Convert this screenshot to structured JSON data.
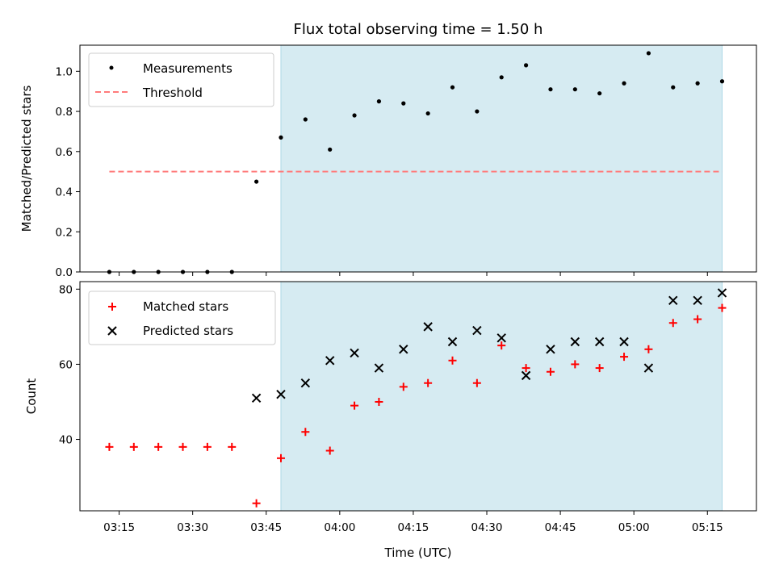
{
  "chart_data": [
    {
      "type": "scatter",
      "title": "Flux total observing time = 1.50 h",
      "ylabel": "Matched/Predicted stars",
      "xlabel": "",
      "ylim": [
        0,
        1.13
      ],
      "yticks": [
        0.0,
        0.2,
        0.4,
        0.6,
        0.8,
        1.0
      ],
      "ytick_labels": [
        "0.0",
        "0.2",
        "0.4",
        "0.6",
        "0.8",
        "1.0"
      ],
      "shaded_region": {
        "x_start": "03:48",
        "x_end": "05:18",
        "color": "#add8e6"
      },
      "legend": {
        "placement": "top-left",
        "entries": [
          "Measurements",
          "Threshold"
        ]
      },
      "series": [
        {
          "name": "Measurements",
          "color": "#000000",
          "marker": "dot",
          "x": [
            "03:13",
            "03:18",
            "03:23",
            "03:28",
            "03:33",
            "03:38",
            "03:43",
            "03:48",
            "03:53",
            "03:58",
            "04:03",
            "04:08",
            "04:13",
            "04:18",
            "04:23",
            "04:28",
            "04:33",
            "04:38",
            "04:43",
            "04:48",
            "04:53",
            "04:58",
            "05:03",
            "05:08",
            "05:13",
            "05:18"
          ],
          "y": [
            0.0,
            0.0,
            0.0,
            0.0,
            0.0,
            0.0,
            0.45,
            0.67,
            0.76,
            0.61,
            0.78,
            0.85,
            0.84,
            0.79,
            0.92,
            0.8,
            0.97,
            1.03,
            0.91,
            0.91,
            0.89,
            0.94,
            1.09,
            0.92,
            0.94,
            0.95
          ]
        },
        {
          "name": "Threshold",
          "color": "#ff7b7b",
          "style": "dashed",
          "x": [
            "03:13",
            "05:18"
          ],
          "y": [
            0.5,
            0.5
          ]
        }
      ]
    },
    {
      "type": "scatter",
      "title": "",
      "xlabel": "Time (UTC)",
      "ylabel": "Count",
      "ylim": [
        21,
        82
      ],
      "yticks": [
        40,
        60,
        80
      ],
      "ytick_labels": [
        "40",
        "60",
        "80"
      ],
      "xlim": [
        "03:07",
        "05:25"
      ],
      "xticks": [
        "03:15",
        "03:30",
        "03:45",
        "04:00",
        "04:15",
        "04:30",
        "04:45",
        "05:00",
        "05:15"
      ],
      "xtick_labels": [
        "03:15",
        "03:30",
        "03:45",
        "04:00",
        "04:15",
        "04:30",
        "04:45",
        "05:00",
        "05:15"
      ],
      "shaded_region": {
        "x_start": "03:48",
        "x_end": "05:18",
        "color": "#add8e6"
      },
      "legend": {
        "placement": "top-left",
        "entries": [
          "Matched stars",
          "Predicted stars"
        ]
      },
      "series": [
        {
          "name": "Matched stars",
          "color": "#ff0000",
          "marker": "plus",
          "x": [
            "03:13",
            "03:18",
            "03:23",
            "03:28",
            "03:33",
            "03:38",
            "03:43",
            "03:48",
            "03:53",
            "03:58",
            "04:03",
            "04:08",
            "04:13",
            "04:18",
            "04:23",
            "04:28",
            "04:33",
            "04:38",
            "04:43",
            "04:48",
            "04:53",
            "04:58",
            "05:03",
            "05:08",
            "05:13",
            "05:18"
          ],
          "y": [
            38,
            38,
            38,
            38,
            38,
            38,
            23,
            35,
            42,
            37,
            49,
            50,
            54,
            55,
            61,
            55,
            65,
            59,
            58,
            60,
            59,
            62,
            64,
            71,
            72,
            75
          ]
        },
        {
          "name": "Predicted stars",
          "color": "#000000",
          "marker": "x",
          "x": [
            "03:43",
            "03:48",
            "03:53",
            "03:58",
            "04:03",
            "04:08",
            "04:13",
            "04:18",
            "04:23",
            "04:28",
            "04:33",
            "04:38",
            "04:43",
            "04:48",
            "04:53",
            "04:58",
            "05:03",
            "05:08",
            "05:13",
            "05:18"
          ],
          "y": [
            51,
            52,
            55,
            61,
            63,
            59,
            64,
            70,
            66,
            69,
            67,
            57,
            64,
            66,
            66,
            66,
            59,
            77,
            77,
            79
          ]
        }
      ]
    }
  ]
}
